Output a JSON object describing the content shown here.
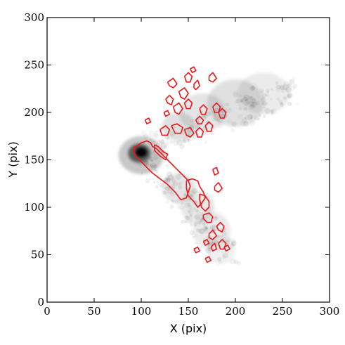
{
  "chart_data": {
    "type": "heatmap",
    "title": "",
    "xlabel": "X (pix)",
    "ylabel": "Y (pix)",
    "xlim": [
      0,
      300
    ],
    "ylim": [
      0,
      300
    ],
    "x_ticks": [
      0,
      50,
      100,
      150,
      200,
      250,
      300
    ],
    "y_ticks": [
      0,
      50,
      100,
      150,
      200,
      250,
      300
    ],
    "grid": false,
    "legend": "none",
    "image_colormap": "greys",
    "peak_center": [
      100,
      158
    ],
    "image_blobs": [
      {
        "x": 100,
        "y": 158,
        "sx": 6,
        "sy": 5,
        "alpha": 1.0
      },
      {
        "x": 98,
        "y": 157,
        "sx": 12,
        "sy": 10,
        "alpha": 0.55
      },
      {
        "x": 100,
        "y": 155,
        "sx": 24,
        "sy": 20,
        "alpha": 0.22
      },
      {
        "x": 140,
        "y": 185,
        "sx": 18,
        "sy": 15,
        "alpha": 0.12
      },
      {
        "x": 165,
        "y": 200,
        "sx": 25,
        "sy": 20,
        "alpha": 0.1
      },
      {
        "x": 200,
        "y": 210,
        "sx": 30,
        "sy": 25,
        "alpha": 0.12
      },
      {
        "x": 230,
        "y": 220,
        "sx": 28,
        "sy": 22,
        "alpha": 0.08
      },
      {
        "x": 140,
        "y": 120,
        "sx": 18,
        "sy": 16,
        "alpha": 0.1
      },
      {
        "x": 160,
        "y": 100,
        "sx": 18,
        "sy": 18,
        "alpha": 0.09
      },
      {
        "x": 175,
        "y": 75,
        "sx": 20,
        "sy": 20,
        "alpha": 0.08
      },
      {
        "x": 185,
        "y": 55,
        "sx": 15,
        "sy": 15,
        "alpha": 0.06
      }
    ],
    "contours": [
      [
        [
          96,
          165
        ],
        [
          100,
          168
        ],
        [
          106,
          170
        ],
        [
          110,
          168
        ],
        [
          112,
          164
        ],
        [
          116,
          162
        ],
        [
          120,
          158
        ],
        [
          126,
          152
        ],
        [
          132,
          146
        ],
        [
          138,
          140
        ],
        [
          144,
          134
        ],
        [
          150,
          128
        ],
        [
          152,
          122
        ],
        [
          150,
          116
        ],
        [
          148,
          110
        ],
        [
          142,
          108
        ],
        [
          136,
          116
        ],
        [
          128,
          124
        ],
        [
          120,
          130
        ],
        [
          112,
          136
        ],
        [
          106,
          142
        ],
        [
          100,
          148
        ],
        [
          96,
          152
        ],
        [
          92,
          158
        ],
        [
          92,
          163
        ],
        [
          96,
          165
        ]
      ],
      [
        [
          114,
          166
        ],
        [
          118,
          164
        ],
        [
          124,
          158
        ],
        [
          128,
          156
        ],
        [
          126,
          150
        ],
        [
          120,
          154
        ],
        [
          114,
          160
        ],
        [
          114,
          166
        ]
      ],
      [
        [
          148,
          128
        ],
        [
          154,
          130
        ],
        [
          160,
          128
        ],
        [
          162,
          122
        ],
        [
          166,
          116
        ],
        [
          168,
          110
        ],
        [
          164,
          104
        ],
        [
          160,
          100
        ],
        [
          156,
          106
        ],
        [
          150,
          112
        ],
        [
          148,
          120
        ],
        [
          148,
          128
        ]
      ],
      [
        [
          162,
          114
        ],
        [
          168,
          112
        ],
        [
          172,
          106
        ],
        [
          172,
          100
        ],
        [
          168,
          96
        ],
        [
          164,
          100
        ],
        [
          162,
          108
        ],
        [
          162,
          114
        ]
      ],
      [
        [
          166,
          92
        ],
        [
          172,
          94
        ],
        [
          176,
          90
        ],
        [
          174,
          84
        ],
        [
          170,
          84
        ],
        [
          166,
          88
        ],
        [
          166,
          92
        ]
      ],
      [
        [
          120,
          182
        ],
        [
          126,
          186
        ],
        [
          130,
          182
        ],
        [
          128,
          176
        ],
        [
          122,
          176
        ],
        [
          120,
          182
        ]
      ],
      [
        [
          132,
          186
        ],
        [
          138,
          188
        ],
        [
          144,
          184
        ],
        [
          142,
          178
        ],
        [
          136,
          178
        ],
        [
          132,
          186
        ]
      ],
      [
        [
          146,
          182
        ],
        [
          152,
          184
        ],
        [
          156,
          178
        ],
        [
          152,
          174
        ],
        [
          148,
          176
        ],
        [
          146,
          182
        ]
      ],
      [
        [
          158,
          180
        ],
        [
          162,
          184
        ],
        [
          166,
          180
        ],
        [
          164,
          174
        ],
        [
          160,
          174
        ],
        [
          158,
          180
        ]
      ],
      [
        [
          168,
          186
        ],
        [
          172,
          190
        ],
        [
          176,
          186
        ],
        [
          174,
          180
        ],
        [
          170,
          180
        ],
        [
          168,
          186
        ]
      ],
      [
        [
          128,
          232
        ],
        [
          134,
          236
        ],
        [
          138,
          230
        ],
        [
          134,
          226
        ],
        [
          130,
          228
        ],
        [
          128,
          232
        ]
      ],
      [
        [
          140,
          222
        ],
        [
          146,
          226
        ],
        [
          150,
          220
        ],
        [
          146,
          214
        ],
        [
          142,
          216
        ],
        [
          140,
          222
        ]
      ],
      [
        [
          126,
          214
        ],
        [
          130,
          218
        ],
        [
          134,
          214
        ],
        [
          132,
          208
        ],
        [
          128,
          210
        ],
        [
          126,
          214
        ]
      ],
      [
        [
          134,
          206
        ],
        [
          140,
          210
        ],
        [
          144,
          204
        ],
        [
          140,
          198
        ],
        [
          136,
          200
        ],
        [
          134,
          206
        ]
      ],
      [
        [
          146,
          238
        ],
        [
          150,
          242
        ],
        [
          154,
          238
        ],
        [
          152,
          232
        ],
        [
          148,
          232
        ],
        [
          146,
          238
        ]
      ],
      [
        [
          156,
          230
        ],
        [
          160,
          234
        ],
        [
          162,
          228
        ],
        [
          158,
          224
        ],
        [
          156,
          226
        ],
        [
          156,
          230
        ]
      ],
      [
        [
          152,
          246
        ],
        [
          156,
          248
        ],
        [
          158,
          244
        ],
        [
          154,
          242
        ],
        [
          152,
          246
        ]
      ],
      [
        [
          146,
          210
        ],
        [
          150,
          214
        ],
        [
          154,
          210
        ],
        [
          152,
          204
        ],
        [
          148,
          204
        ],
        [
          146,
          210
        ]
      ],
      [
        [
          162,
          204
        ],
        [
          166,
          208
        ],
        [
          170,
          204
        ],
        [
          168,
          198
        ],
        [
          164,
          198
        ],
        [
          162,
          204
        ]
      ],
      [
        [
          172,
          238
        ],
        [
          176,
          242
        ],
        [
          180,
          236
        ],
        [
          176,
          232
        ],
        [
          172,
          234
        ],
        [
          172,
          238
        ]
      ],
      [
        [
          182,
          200
        ],
        [
          186,
          204
        ],
        [
          190,
          200
        ],
        [
          188,
          194
        ],
        [
          184,
          194
        ],
        [
          182,
          200
        ]
      ],
      [
        [
          176,
          206
        ],
        [
          180,
          210
        ],
        [
          184,
          206
        ],
        [
          182,
          200
        ],
        [
          178,
          200
        ],
        [
          176,
          206
        ]
      ],
      [
        [
          158,
          192
        ],
        [
          162,
          196
        ],
        [
          166,
          192
        ],
        [
          164,
          188
        ],
        [
          160,
          188
        ],
        [
          158,
          192
        ]
      ],
      [
        [
          176,
          140
        ],
        [
          180,
          142
        ],
        [
          182,
          136
        ],
        [
          178,
          134
        ],
        [
          176,
          140
        ]
      ],
      [
        [
          178,
          122
        ],
        [
          182,
          126
        ],
        [
          186,
          120
        ],
        [
          182,
          116
        ],
        [
          178,
          118
        ],
        [
          178,
          122
        ]
      ],
      [
        [
          172,
          72
        ],
        [
          176,
          76
        ],
        [
          180,
          70
        ],
        [
          176,
          66
        ],
        [
          172,
          68
        ],
        [
          172,
          72
        ]
      ],
      [
        [
          182,
          62
        ],
        [
          186,
          66
        ],
        [
          190,
          62
        ],
        [
          188,
          56
        ],
        [
          184,
          56
        ],
        [
          182,
          62
        ]
      ],
      [
        [
          174,
          58
        ],
        [
          178,
          62
        ],
        [
          180,
          56
        ],
        [
          176,
          54
        ],
        [
          174,
          58
        ]
      ],
      [
        [
          188,
          58
        ],
        [
          192,
          60
        ],
        [
          194,
          56
        ],
        [
          190,
          54
        ],
        [
          188,
          58
        ]
      ],
      [
        [
          156,
          56
        ],
        [
          160,
          58
        ],
        [
          162,
          54
        ],
        [
          158,
          52
        ],
        [
          156,
          56
        ]
      ],
      [
        [
          166,
          64
        ],
        [
          170,
          66
        ],
        [
          172,
          62
        ],
        [
          168,
          60
        ],
        [
          166,
          64
        ]
      ],
      [
        [
          180,
          80
        ],
        [
          184,
          84
        ],
        [
          188,
          80
        ],
        [
          186,
          74
        ],
        [
          182,
          76
        ],
        [
          180,
          80
        ]
      ],
      [
        [
          168,
          46
        ],
        [
          172,
          48
        ],
        [
          174,
          44
        ],
        [
          170,
          42
        ],
        [
          168,
          46
        ]
      ],
      [
        [
          104,
          192
        ],
        [
          108,
          194
        ],
        [
          110,
          190
        ],
        [
          106,
          188
        ],
        [
          104,
          192
        ]
      ],
      [
        [
          124,
          200
        ],
        [
          128,
          202
        ],
        [
          130,
          198
        ],
        [
          126,
          196
        ],
        [
          124,
          200
        ]
      ]
    ]
  }
}
